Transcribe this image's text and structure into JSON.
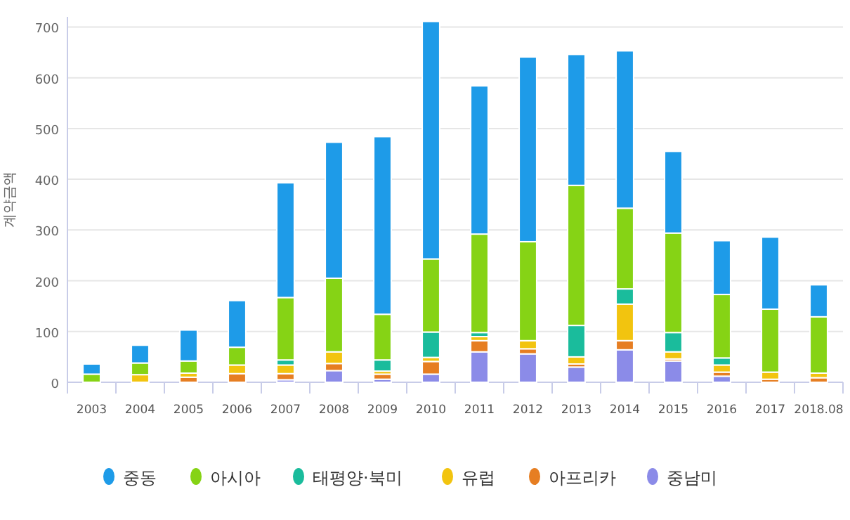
{
  "chart_data": {
    "type": "bar",
    "stacked": true,
    "ylabel": "계약금액",
    "categories": [
      "2003",
      "2004",
      "2005",
      "2006",
      "2007",
      "2008",
      "2009",
      "2010",
      "2011",
      "2012",
      "2013",
      "2014",
      "2015",
      "2016",
      "2017",
      "2018.08"
    ],
    "series": [
      {
        "name": "중남미",
        "color": "#8b8be8",
        "values": [
          0,
          0,
          0,
          null,
          5,
          23,
          6,
          16,
          60,
          56,
          30,
          64,
          42,
          12,
          0,
          null
        ]
      },
      {
        "name": "아프리카",
        "color": "#e67e22",
        "values": [
          0,
          null,
          10,
          17,
          12,
          14,
          10,
          25,
          22,
          10,
          6,
          18,
          4,
          8,
          6,
          9
        ]
      },
      {
        "name": "유럽",
        "color": "#f2c40f",
        "values": [
          null,
          15,
          8,
          17,
          17,
          23,
          6,
          8,
          8,
          16,
          14,
          72,
          14,
          14,
          14,
          9
        ]
      },
      {
        "name": "태평양·북미",
        "color": "#1abc9c",
        "values": [
          0,
          0,
          0,
          0,
          10,
          0,
          22,
          50,
          8,
          0,
          62,
          30,
          38,
          14,
          0,
          0
        ]
      },
      {
        "name": "아시아",
        "color": "#86d315",
        "values": [
          16,
          23,
          24,
          35,
          123,
          145,
          90,
          144,
          194,
          195,
          276,
          159,
          196,
          125,
          124,
          111
        ]
      },
      {
        "name": "중동",
        "color": "#1e9be8",
        "values": [
          20,
          35,
          61,
          92,
          226,
          268,
          350,
          468,
          292,
          364,
          258,
          310,
          161,
          106,
          142,
          63
        ]
      }
    ],
    "ylim": [
      0,
      720
    ],
    "yticks": [
      0,
      100,
      200,
      300,
      400,
      500,
      600,
      700
    ],
    "grid": "y",
    "legend": "bottom"
  }
}
